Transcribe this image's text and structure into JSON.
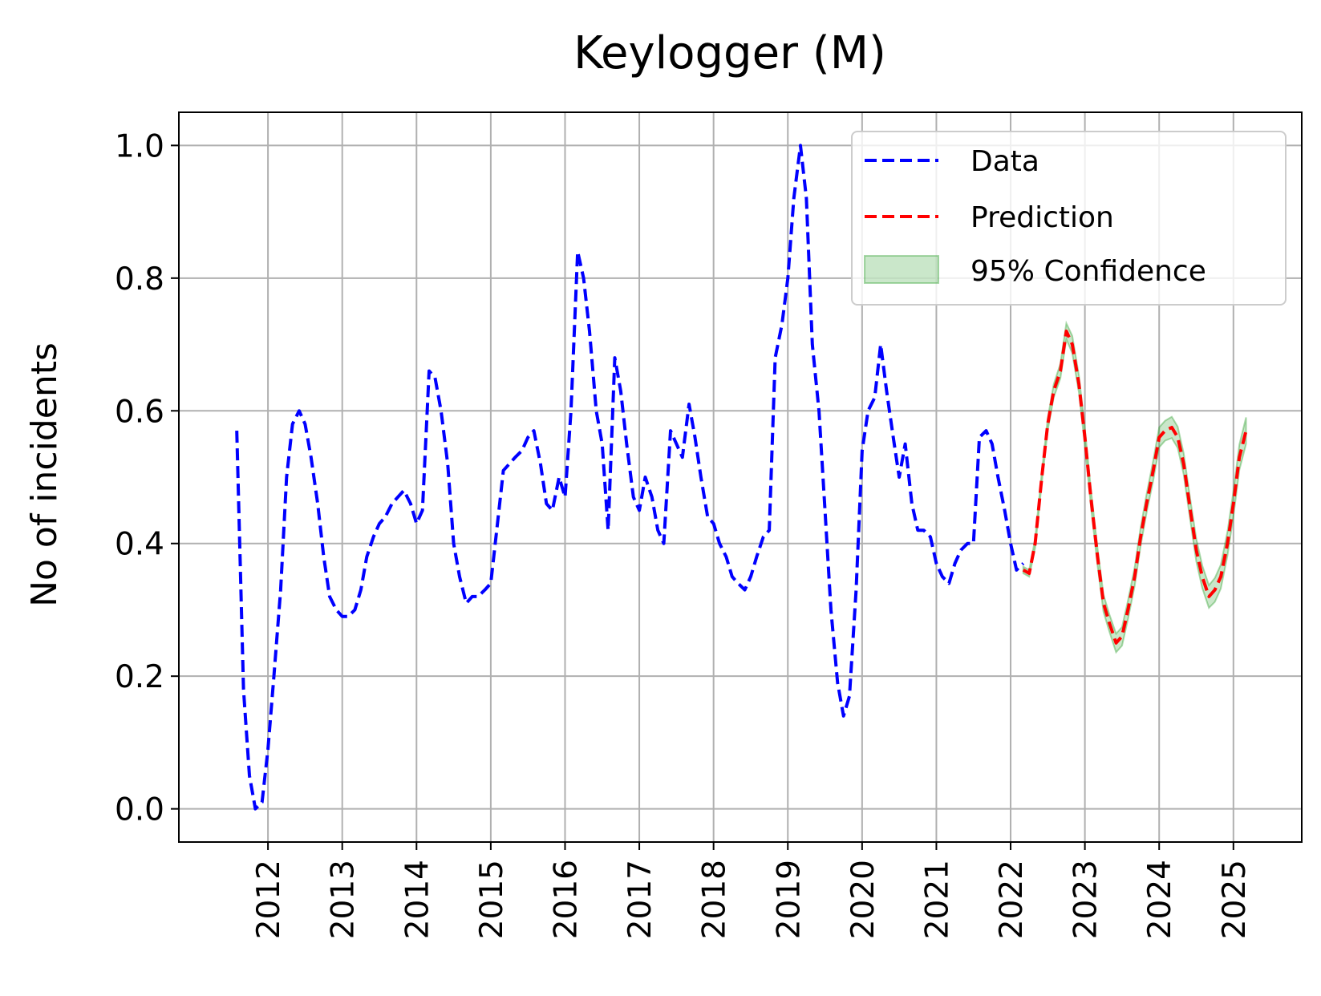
{
  "chart_data": {
    "type": "line",
    "title": "Keylogger (M)",
    "xlabel": "",
    "ylabel": "No of incidents",
    "xlim": [
      2010.8,
      2025.92
    ],
    "ylim": [
      -0.05,
      1.05
    ],
    "x_ticks": [
      "2012",
      "2013",
      "2014",
      "2015",
      "2016",
      "2017",
      "2018",
      "2019",
      "2020",
      "2021",
      "2022",
      "2023",
      "2024",
      "2025"
    ],
    "y_ticks": [
      "0.0",
      "0.2",
      "0.4",
      "0.6",
      "0.8",
      "1.0"
    ],
    "grid": true,
    "legend_position": "top-right",
    "legend": [
      "Data",
      "Prediction",
      "95% Confidence"
    ],
    "colors": {
      "data": "#0000ff",
      "prediction": "#ff0000",
      "confidence": "#2ca02c"
    },
    "series": [
      {
        "name": "Data",
        "style": "dashed",
        "points": [
          [
            2011.58,
            0.57
          ],
          [
            2011.67,
            0.18
          ],
          [
            2011.75,
            0.05
          ],
          [
            2011.83,
            0.0
          ],
          [
            2011.92,
            0.01
          ],
          [
            2012.0,
            0.09
          ],
          [
            2012.08,
            0.2
          ],
          [
            2012.17,
            0.33
          ],
          [
            2012.25,
            0.5
          ],
          [
            2012.33,
            0.58
          ],
          [
            2012.42,
            0.6
          ],
          [
            2012.5,
            0.58
          ],
          [
            2012.58,
            0.53
          ],
          [
            2012.67,
            0.46
          ],
          [
            2012.75,
            0.38
          ],
          [
            2012.83,
            0.32
          ],
          [
            2012.92,
            0.3
          ],
          [
            2013.0,
            0.29
          ],
          [
            2013.08,
            0.29
          ],
          [
            2013.17,
            0.3
          ],
          [
            2013.25,
            0.33
          ],
          [
            2013.33,
            0.38
          ],
          [
            2013.42,
            0.41
          ],
          [
            2013.5,
            0.43
          ],
          [
            2013.58,
            0.44
          ],
          [
            2013.67,
            0.46
          ],
          [
            2013.75,
            0.47
          ],
          [
            2013.83,
            0.48
          ],
          [
            2013.92,
            0.46
          ],
          [
            2014.0,
            0.43
          ],
          [
            2014.08,
            0.45
          ],
          [
            2014.17,
            0.66
          ],
          [
            2014.25,
            0.65
          ],
          [
            2014.33,
            0.6
          ],
          [
            2014.42,
            0.52
          ],
          [
            2014.5,
            0.4
          ],
          [
            2014.58,
            0.35
          ],
          [
            2014.67,
            0.31
          ],
          [
            2014.75,
            0.32
          ],
          [
            2014.83,
            0.32
          ],
          [
            2014.92,
            0.33
          ],
          [
            2015.0,
            0.34
          ],
          [
            2015.08,
            0.42
          ],
          [
            2015.17,
            0.51
          ],
          [
            2015.25,
            0.52
          ],
          [
            2015.33,
            0.53
          ],
          [
            2015.42,
            0.54
          ],
          [
            2015.5,
            0.56
          ],
          [
            2015.58,
            0.57
          ],
          [
            2015.67,
            0.52
          ],
          [
            2015.75,
            0.46
          ],
          [
            2015.83,
            0.45
          ],
          [
            2015.92,
            0.5
          ],
          [
            2016.0,
            0.47
          ],
          [
            2016.08,
            0.6
          ],
          [
            2016.17,
            0.84
          ],
          [
            2016.25,
            0.8
          ],
          [
            2016.33,
            0.72
          ],
          [
            2016.42,
            0.6
          ],
          [
            2016.5,
            0.55
          ],
          [
            2016.58,
            0.42
          ],
          [
            2016.67,
            0.68
          ],
          [
            2016.75,
            0.63
          ],
          [
            2016.83,
            0.55
          ],
          [
            2016.92,
            0.47
          ],
          [
            2017.0,
            0.45
          ],
          [
            2017.08,
            0.5
          ],
          [
            2017.17,
            0.47
          ],
          [
            2017.25,
            0.42
          ],
          [
            2017.33,
            0.4
          ],
          [
            2017.42,
            0.57
          ],
          [
            2017.5,
            0.55
          ],
          [
            2017.58,
            0.53
          ],
          [
            2017.67,
            0.61
          ],
          [
            2017.75,
            0.56
          ],
          [
            2017.83,
            0.5
          ],
          [
            2017.92,
            0.44
          ],
          [
            2018.0,
            0.43
          ],
          [
            2018.08,
            0.4
          ],
          [
            2018.17,
            0.38
          ],
          [
            2018.25,
            0.35
          ],
          [
            2018.33,
            0.34
          ],
          [
            2018.42,
            0.33
          ],
          [
            2018.5,
            0.35
          ],
          [
            2018.58,
            0.38
          ],
          [
            2018.67,
            0.41
          ],
          [
            2018.75,
            0.42
          ],
          [
            2018.83,
            0.68
          ],
          [
            2018.92,
            0.73
          ],
          [
            2019.0,
            0.8
          ],
          [
            2019.08,
            0.92
          ],
          [
            2019.17,
            1.0
          ],
          [
            2019.25,
            0.92
          ],
          [
            2019.33,
            0.7
          ],
          [
            2019.42,
            0.6
          ],
          [
            2019.5,
            0.45
          ],
          [
            2019.58,
            0.3
          ],
          [
            2019.67,
            0.19
          ],
          [
            2019.75,
            0.14
          ],
          [
            2019.83,
            0.17
          ],
          [
            2019.92,
            0.33
          ],
          [
            2020.0,
            0.54
          ],
          [
            2020.08,
            0.6
          ],
          [
            2020.17,
            0.62
          ],
          [
            2020.25,
            0.7
          ],
          [
            2020.33,
            0.63
          ],
          [
            2020.42,
            0.56
          ],
          [
            2020.5,
            0.5
          ],
          [
            2020.58,
            0.55
          ],
          [
            2020.67,
            0.46
          ],
          [
            2020.75,
            0.42
          ],
          [
            2020.83,
            0.42
          ],
          [
            2020.92,
            0.41
          ],
          [
            2021.0,
            0.37
          ],
          [
            2021.08,
            0.35
          ],
          [
            2021.17,
            0.34
          ],
          [
            2021.25,
            0.37
          ],
          [
            2021.33,
            0.39
          ],
          [
            2021.42,
            0.4
          ],
          [
            2021.5,
            0.4
          ],
          [
            2021.58,
            0.56
          ],
          [
            2021.67,
            0.57
          ],
          [
            2021.75,
            0.55
          ],
          [
            2021.83,
            0.5
          ],
          [
            2021.92,
            0.45
          ],
          [
            2022.0,
            0.4
          ],
          [
            2022.08,
            0.36
          ],
          [
            2022.17,
            0.37
          ]
        ]
      },
      {
        "name": "Prediction",
        "style": "dashed",
        "points": [
          [
            2022.17,
            0.36
          ],
          [
            2022.25,
            0.355
          ],
          [
            2022.33,
            0.4
          ],
          [
            2022.42,
            0.5
          ],
          [
            2022.5,
            0.58
          ],
          [
            2022.58,
            0.63
          ],
          [
            2022.67,
            0.66
          ],
          [
            2022.75,
            0.72
          ],
          [
            2022.83,
            0.7
          ],
          [
            2022.92,
            0.64
          ],
          [
            2023.0,
            0.56
          ],
          [
            2023.08,
            0.47
          ],
          [
            2023.17,
            0.38
          ],
          [
            2023.25,
            0.31
          ],
          [
            2023.33,
            0.28
          ],
          [
            2023.42,
            0.25
          ],
          [
            2023.5,
            0.26
          ],
          [
            2023.58,
            0.3
          ],
          [
            2023.67,
            0.35
          ],
          [
            2023.75,
            0.41
          ],
          [
            2023.83,
            0.46
          ],
          [
            2023.92,
            0.51
          ],
          [
            2024.0,
            0.56
          ],
          [
            2024.08,
            0.57
          ],
          [
            2024.17,
            0.575
          ],
          [
            2024.25,
            0.56
          ],
          [
            2024.33,
            0.52
          ],
          [
            2024.42,
            0.45
          ],
          [
            2024.5,
            0.39
          ],
          [
            2024.58,
            0.35
          ],
          [
            2024.67,
            0.32
          ],
          [
            2024.75,
            0.33
          ],
          [
            2024.83,
            0.35
          ],
          [
            2024.92,
            0.4
          ],
          [
            2025.0,
            0.46
          ],
          [
            2025.08,
            0.53
          ],
          [
            2025.17,
            0.57
          ]
        ]
      }
    ],
    "confidence_band": {
      "name": "95% Confidence",
      "halfwidth": [
        0.005,
        0.005,
        0.007,
        0.008,
        0.009,
        0.01,
        0.011,
        0.012,
        0.013,
        0.013,
        0.013,
        0.013,
        0.013,
        0.013,
        0.013,
        0.014,
        0.014,
        0.014,
        0.014,
        0.014,
        0.014,
        0.015,
        0.015,
        0.015,
        0.016,
        0.016,
        0.016,
        0.016,
        0.017,
        0.017,
        0.017,
        0.018,
        0.018,
        0.018,
        0.019,
        0.019,
        0.02
      ]
    }
  }
}
